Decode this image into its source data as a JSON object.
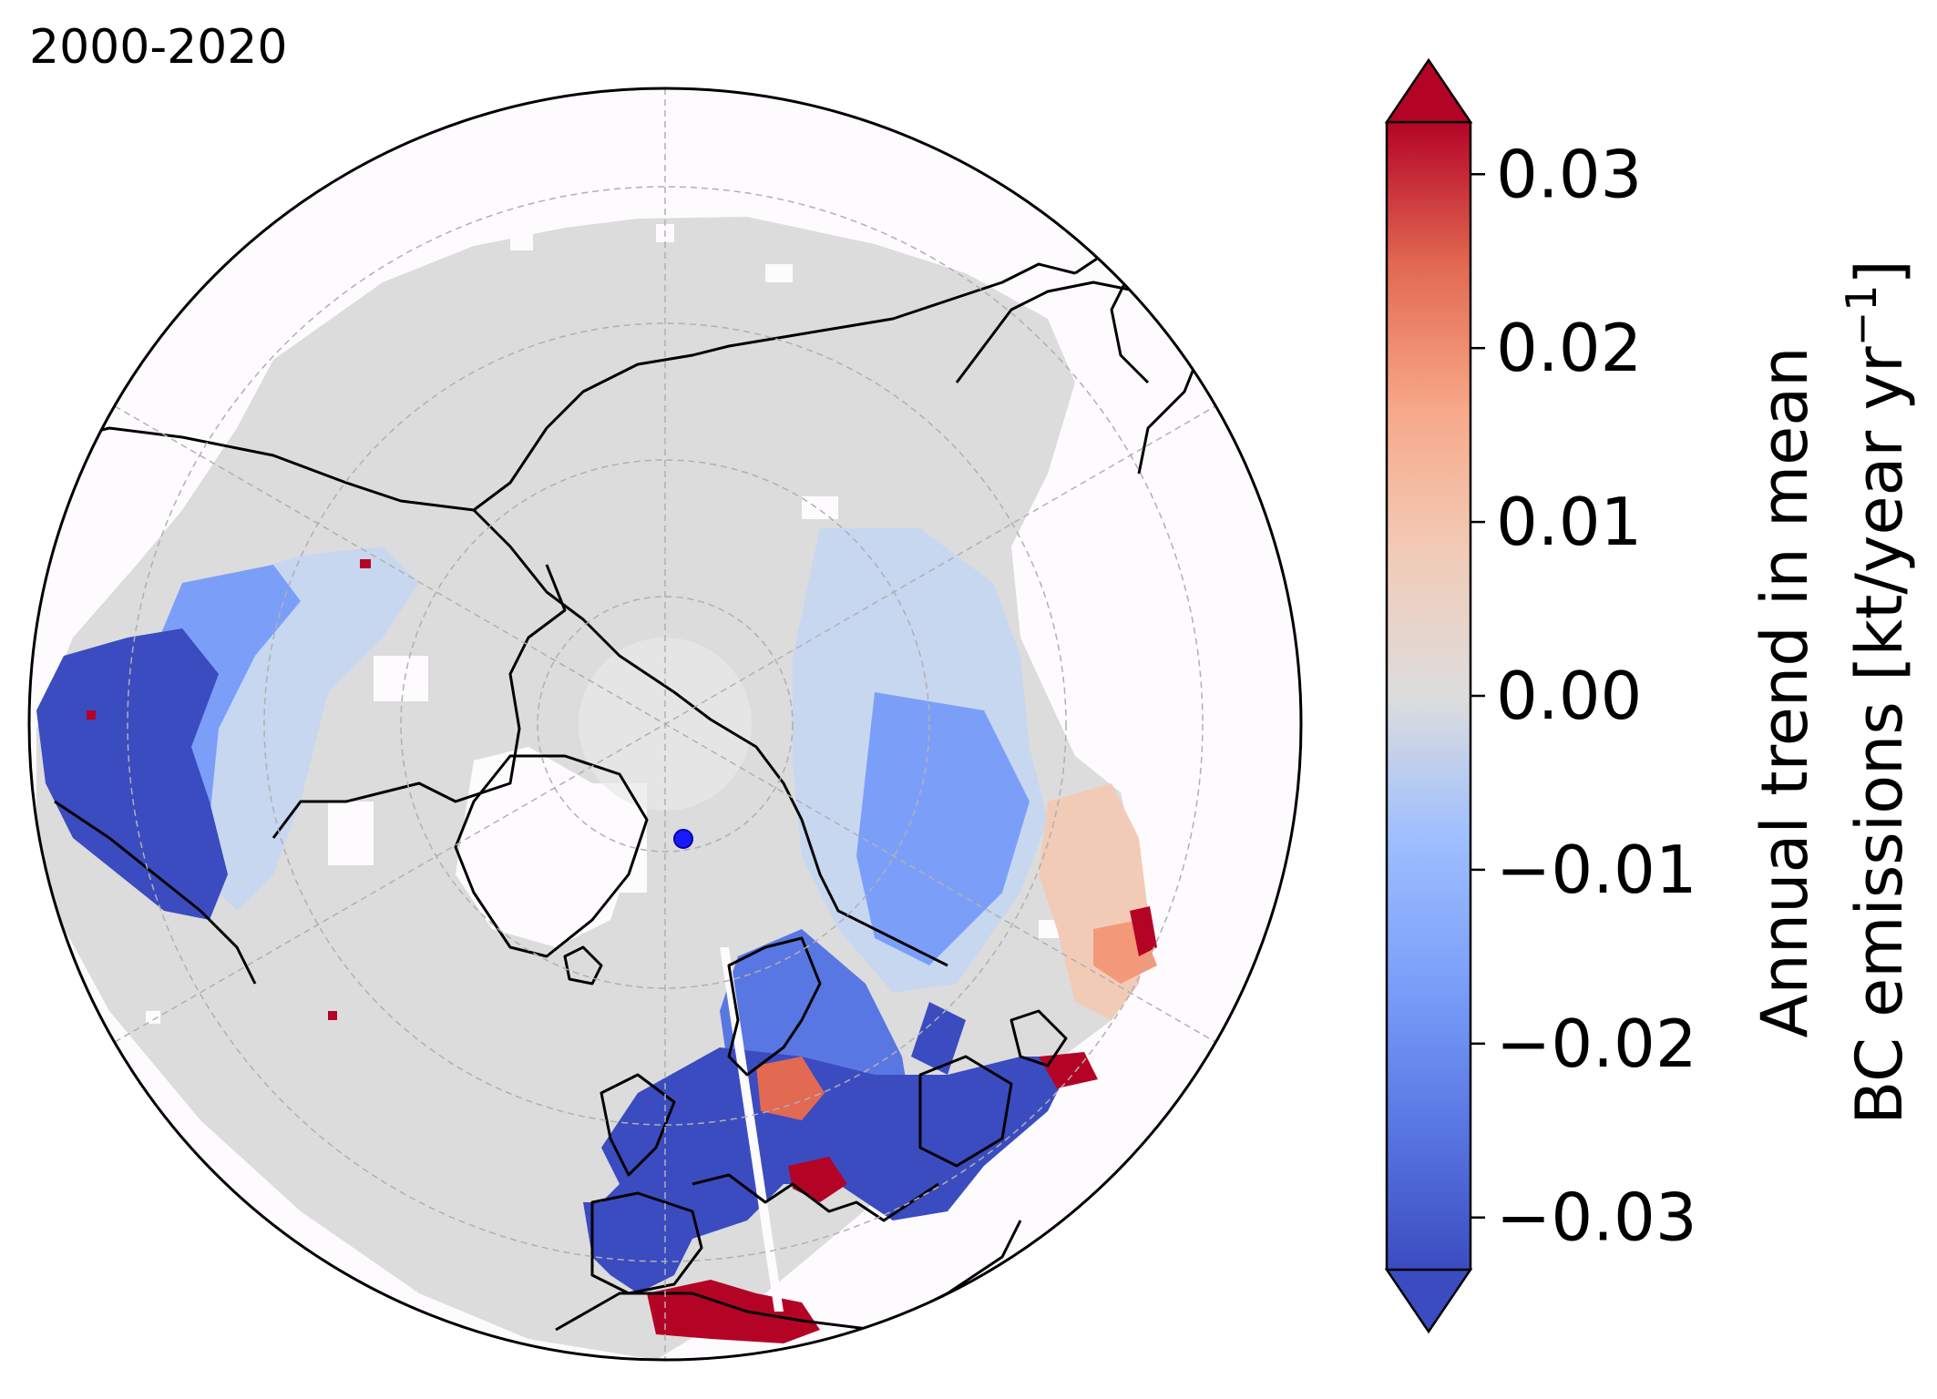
{
  "title": "2000-2020",
  "colorbar": {
    "label_line1": "Annual trend in mean",
    "label_line2_text": "BC emissions [kt/year yr",
    "label_line2_sup": "−1",
    "label_line2_close": "]",
    "ticks": [
      "0.03",
      "0.02",
      "0.01",
      "0.00",
      "−0.01",
      "−0.02",
      "−0.03"
    ],
    "tick_values": [
      0.03,
      0.02,
      0.01,
      0.0,
      -0.01,
      -0.02,
      -0.03
    ],
    "range": [
      -0.033,
      0.033
    ],
    "extend": "both",
    "colormap": "coolwarm"
  },
  "colors": {
    "ocean": "#fdfbfd",
    "land_nodata": "#dcdcdc",
    "strong_positive": "#b40426",
    "strong_negative": "#3b4cc0",
    "coastline": "#000000"
  },
  "map": {
    "projection": "north-polar-stereographic",
    "marker": "blue-dot"
  }
}
